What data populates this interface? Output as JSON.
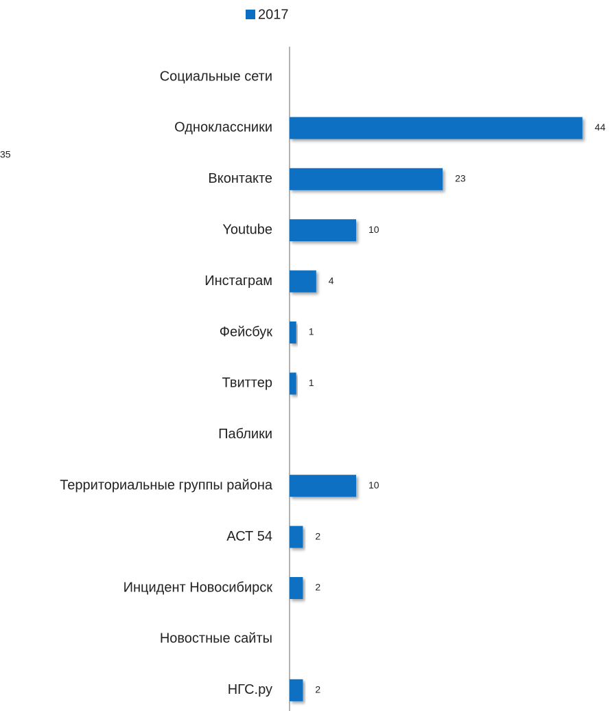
{
  "chart_data": {
    "type": "bar",
    "orientation": "horizontal",
    "categories": [
      "Социальные сети",
      "Одноклассники",
      "Вконтакте",
      "Youtube",
      "Инстаграм",
      "Фейсбук",
      "Твиттер",
      "Паблики",
      "Территориальные группы района",
      "АСТ 54",
      "Инцидент Новосибирск",
      "Новостные сайты",
      "НГС.ру"
    ],
    "series": [
      {
        "name": "2017",
        "color": "#0a6fc2",
        "values": [
          null,
          44,
          23,
          10,
          4,
          1,
          1,
          null,
          10,
          2,
          2,
          null,
          2
        ]
      }
    ],
    "annotations": [
      "35"
    ],
    "legend": "top"
  }
}
